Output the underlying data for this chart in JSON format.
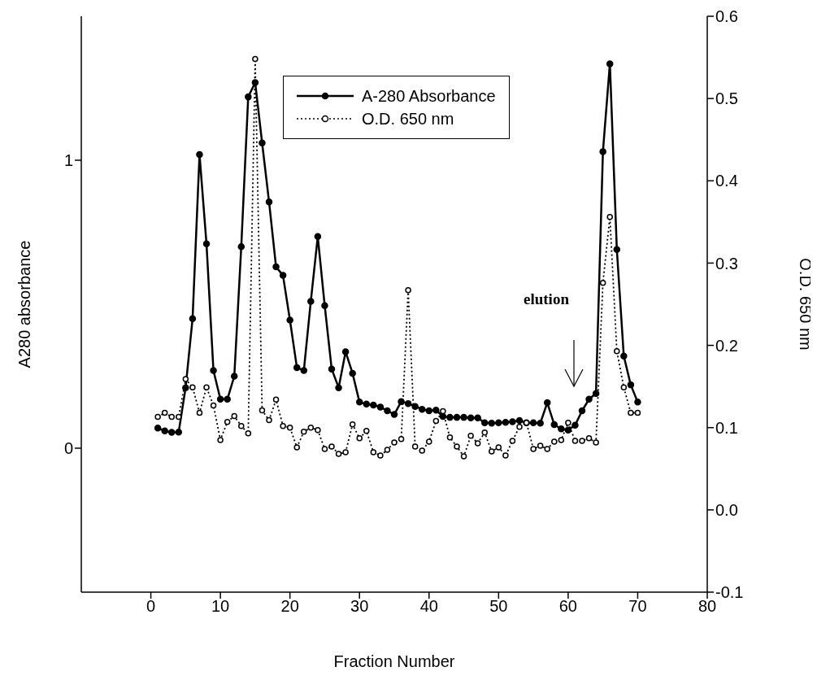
{
  "chart_data": {
    "type": "line",
    "xlabel": "Fraction Number",
    "ylabel": "A280 absorbance",
    "y2label": "O.D. 650 nm",
    "x": [
      1,
      2,
      3,
      4,
      5,
      6,
      7,
      8,
      9,
      10,
      11,
      12,
      13,
      14,
      15,
      16,
      17,
      18,
      19,
      20,
      21,
      22,
      23,
      24,
      25,
      26,
      27,
      28,
      29,
      30,
      31,
      32,
      33,
      34,
      35,
      36,
      37,
      38,
      39,
      40,
      41,
      42,
      43,
      44,
      45,
      46,
      47,
      48,
      49,
      50,
      51,
      52,
      53,
      54,
      55,
      56,
      57,
      58,
      59,
      60,
      61,
      62,
      63,
      64,
      65,
      66,
      67,
      68,
      69,
      70
    ],
    "xlim": [
      -10,
      80
    ],
    "xticks": [
      0,
      10,
      20,
      30,
      40,
      50,
      60,
      70,
      80
    ],
    "ylim": [
      -0.5,
      1.5
    ],
    "yticks": [
      0,
      1
    ],
    "y2lim": [
      -0.1,
      0.6
    ],
    "y2ticks": [
      {
        "value": -0.1,
        "label": "-0.1"
      },
      {
        "value": 0,
        "label": "0.0"
      },
      {
        "value": 0.1,
        "label": "0.1"
      },
      {
        "value": 0.2,
        "label": "0.2"
      },
      {
        "value": 0.3,
        "label": "0.3"
      },
      {
        "value": 0.4,
        "label": "0.4"
      },
      {
        "value": 0.5,
        "label": "0.5"
      },
      {
        "value": 0.6,
        "label": "0.6"
      }
    ],
    "series": [
      {
        "name": "A-280 Absorbance",
        "color": "#000000",
        "line_style": "solid",
        "values": [
          0.07,
          0.06,
          0.055,
          0.056,
          0.21,
          0.45,
          1.02,
          0.71,
          0.27,
          0.17,
          0.17,
          0.25,
          0.7,
          1.22,
          1.27,
          1.06,
          0.855,
          0.63,
          0.6,
          0.445,
          0.28,
          0.27,
          0.51,
          0.735,
          0.495,
          0.275,
          0.21,
          0.335,
          0.26,
          0.16,
          0.153,
          0.15,
          0.143,
          0.13,
          0.117,
          0.162,
          0.155,
          0.145,
          0.135,
          0.13,
          0.132,
          0.11,
          0.107,
          0.107,
          0.107,
          0.105,
          0.105,
          0.088,
          0.087,
          0.088,
          0.09,
          0.092,
          0.096,
          0.088,
          0.088,
          0.087,
          0.158,
          0.082,
          0.067,
          0.063,
          0.08,
          0.13,
          0.17,
          0.19,
          1.03,
          1.335,
          0.69,
          0.32,
          0.22,
          0.16
        ]
      },
      {
        "name": "O.D. 650 nm",
        "color": "#000000",
        "line_style": "dotted",
        "axis": "y2",
        "values": [
          0.113,
          0.118,
          0.113,
          0.113,
          0.159,
          0.149,
          0.118,
          0.149,
          0.127,
          0.085,
          0.107,
          0.114,
          0.102,
          0.093,
          0.548,
          0.121,
          0.109,
          0.134,
          0.102,
          0.1,
          0.076,
          0.095,
          0.1,
          0.097,
          0.074,
          0.077,
          0.068,
          0.07,
          0.104,
          0.087,
          0.096,
          0.07,
          0.066,
          0.073,
          0.082,
          0.086,
          0.267,
          0.077,
          0.072,
          0.083,
          0.108,
          0.12,
          0.088,
          0.077,
          0.065,
          0.09,
          0.081,
          0.094,
          0.071,
          0.076,
          0.066,
          0.084,
          0.101,
          0.106,
          0.074,
          0.078,
          0.074,
          0.083,
          0.085,
          0.106,
          0.084,
          0.084,
          0.087,
          0.082,
          0.276,
          0.356,
          0.193,
          0.149,
          0.118,
          0.118
        ]
      }
    ],
    "marker": "circle",
    "legend": "top",
    "grid": false,
    "annotations": [
      "elution"
    ]
  }
}
